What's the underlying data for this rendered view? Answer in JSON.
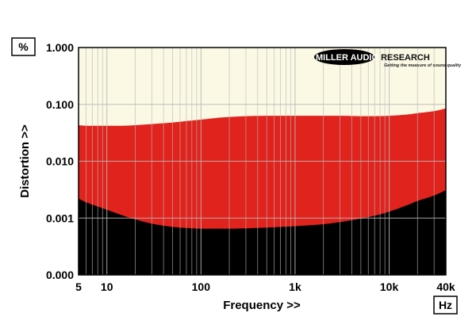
{
  "chart_data": {
    "type": "area",
    "title": "",
    "xlabel": "Frequency >>",
    "ylabel": "Distortion >>",
    "x_unit": "Hz",
    "y_unit": "%",
    "x_scale": "log",
    "y_scale": "log",
    "xlim": [
      5,
      40000
    ],
    "ylim_labels": [
      "0.000",
      "0.001",
      "0.010",
      "0.100",
      "1.000"
    ],
    "x_ticks": [
      {
        "value": 5,
        "label": "5"
      },
      {
        "value": 10,
        "label": "10"
      },
      {
        "value": 100,
        "label": "100"
      },
      {
        "value": 1000,
        "label": "1k"
      },
      {
        "value": 10000,
        "label": "10k"
      },
      {
        "value": 40000,
        "label": "40k"
      }
    ],
    "y_ticks": [
      {
        "label": "0.000"
      },
      {
        "label": "0.001",
        "value": 0.001
      },
      {
        "label": "0.010",
        "value": 0.01
      },
      {
        "label": "0.100",
        "value": 0.1
      },
      {
        "label": "1.000",
        "value": 1.0
      }
    ],
    "grid": true,
    "series": [
      {
        "role": "upper-envelope",
        "x": [
          5,
          6,
          8,
          10,
          15,
          20,
          30,
          50,
          70,
          100,
          150,
          200,
          300,
          500,
          700,
          1000,
          2000,
          3000,
          5000,
          7000,
          10000,
          15000,
          20000,
          30000,
          40000
        ],
        "values": [
          0.043,
          0.042,
          0.042,
          0.042,
          0.042,
          0.043,
          0.045,
          0.048,
          0.051,
          0.054,
          0.058,
          0.06,
          0.062,
          0.063,
          0.063,
          0.063,
          0.063,
          0.063,
          0.062,
          0.062,
          0.063,
          0.066,
          0.07,
          0.076,
          0.085
        ]
      },
      {
        "role": "lower-envelope",
        "x": [
          5,
          6,
          8,
          10,
          15,
          20,
          30,
          50,
          70,
          100,
          150,
          200,
          300,
          500,
          700,
          1000,
          2000,
          3000,
          5000,
          7000,
          10000,
          15000,
          20000,
          30000,
          40000
        ],
        "values": [
          0.0022,
          0.0019,
          0.0016,
          0.0014,
          0.0011,
          0.00095,
          0.0008,
          0.0007,
          0.00067,
          0.00065,
          0.00065,
          0.00065,
          0.00066,
          0.00068,
          0.0007,
          0.00072,
          0.00078,
          0.00085,
          0.00098,
          0.0011,
          0.0013,
          0.00165,
          0.002,
          0.0025,
          0.0031
        ]
      }
    ],
    "colors": {
      "plot_background": "#FBF8E4",
      "band_fill": "#E0231D",
      "below_fill": "#000000",
      "grid": "#B8B8B8"
    },
    "logo": {
      "name": "MILLER AUDIO RESEARCH",
      "tagline": "Getting the measure of sound quality",
      "placement": "top-right"
    }
  }
}
